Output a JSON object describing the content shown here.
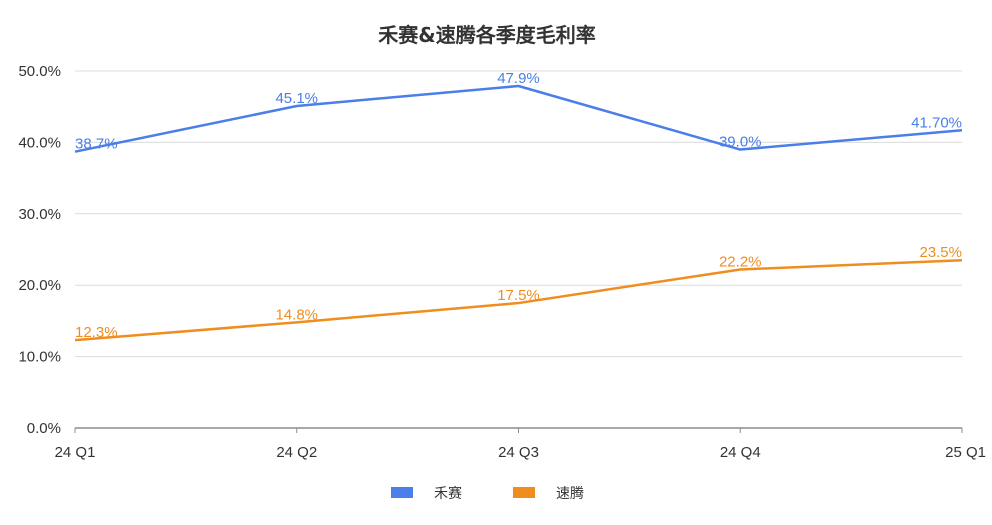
{
  "chart_data": {
    "type": "line",
    "title": "禾赛&速腾各季度毛利率",
    "categories": [
      "24 Q1",
      "24 Q2",
      "24 Q3",
      "24 Q4",
      "25 Q1"
    ],
    "ylim": [
      0,
      50
    ],
    "yticks": [
      0,
      10,
      20,
      30,
      40,
      50
    ],
    "ytick_labels": [
      "0.0%",
      "10.0%",
      "20.0%",
      "30.0%",
      "40.0%",
      "50.0%"
    ],
    "grid": true,
    "legend_position": "bottom-center",
    "series": [
      {
        "name": "禾赛",
        "color": "#4a7ee8",
        "values": [
          38.7,
          45.1,
          47.9,
          39.0,
          41.7
        ],
        "labels": [
          "38.7%",
          "45.1%",
          "47.9%",
          "39.0%",
          "41.70%"
        ]
      },
      {
        "name": "速腾",
        "color": "#ef8d1f",
        "values": [
          12.3,
          14.8,
          17.5,
          22.2,
          23.5
        ],
        "labels": [
          "12.3%",
          "14.8%",
          "17.5%",
          "22.2%",
          "23.5%"
        ]
      }
    ]
  }
}
